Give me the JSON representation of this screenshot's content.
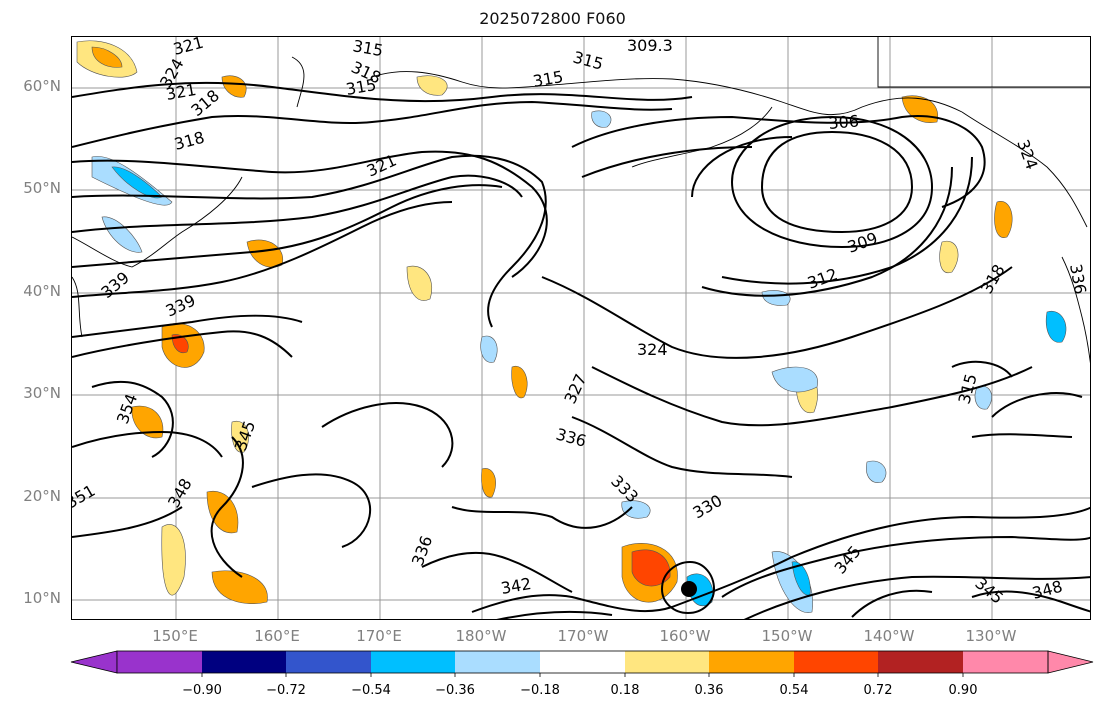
{
  "title": "2025072800 F060",
  "lat_labels": [
    "60°N",
    "50°N",
    "40°N",
    "30°N",
    "20°N",
    "10°N"
  ],
  "lon_labels": [
    "150°E",
    "160°E",
    "170°E",
    "180°W",
    "170°W",
    "160°W",
    "150°W",
    "140°W",
    "130°W"
  ],
  "colorbar": {
    "ticks": [
      "−0.90",
      "−0.72",
      "−0.54",
      "−0.36",
      "−0.18",
      "0.18",
      "0.36",
      "0.54",
      "0.72",
      "0.90"
    ],
    "colors": [
      "#9933cc",
      "#000080",
      "#3355cc",
      "#00bfff",
      "#aaddff",
      "#ffffff",
      "#ffe680",
      "#ffa500",
      "#ff4500",
      "#b22222",
      "#ff88aa"
    ]
  },
  "contour_labels": [
    "321",
    "315",
    "318",
    "324",
    "321",
    "318",
    "315",
    "315",
    "309.3",
    "315",
    "306",
    "318",
    "321",
    "339",
    "339",
    "354",
    "345",
    "348",
    "351",
    "336",
    "327",
    "324",
    "312",
    "309",
    "318",
    "315",
    "333",
    "330",
    "336",
    "342",
    "345",
    "345",
    "348",
    "324",
    "336"
  ],
  "colors": {
    "contour": "#000000",
    "grid": "#999999",
    "coast": "#000000"
  }
}
